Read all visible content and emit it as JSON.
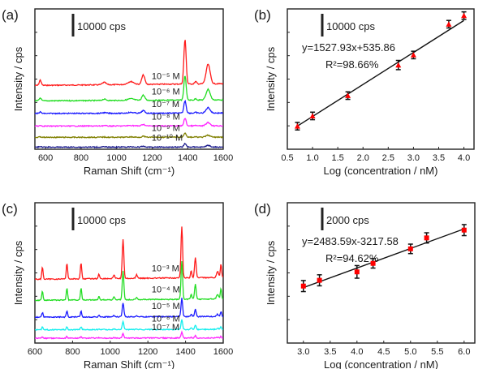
{
  "chart_data": [
    {
      "panel": "(a)",
      "type": "line",
      "xlabel": "Raman Shift (cm⁻¹)",
      "ylabel": "Intensity / cps",
      "xlim": [
        540,
        1600
      ],
      "xticks": [
        600,
        800,
        1000,
        1200,
        1400,
        1600
      ],
      "scale_bar": "10000 cps",
      "scale_bar_value": 10000,
      "series": [
        {
          "name": "10⁻⁵ M",
          "color": "#ff1a1a",
          "offset": 0.42,
          "amp": 1.0
        },
        {
          "name": "10⁻⁶ M",
          "color": "#22dd22",
          "offset": 0.31,
          "amp": 0.55
        },
        {
          "name": "10⁻⁷ M",
          "color": "#1a1aff",
          "offset": 0.22,
          "amp": 0.28
        },
        {
          "name": "10⁻⁸ M",
          "color": "#ff22ff",
          "offset": 0.13,
          "amp": 0.17
        },
        {
          "name": "10⁻⁹ M",
          "color": "#808000",
          "offset": 0.05,
          "amp": 0.1
        },
        {
          "name": "10⁻¹⁰ M",
          "color": "#1a1a8c",
          "offset": -0.02,
          "amp": 0.08
        }
      ],
      "peaks": [
        [
          570,
          0.09,
          8
        ],
        [
          930,
          0.04,
          15
        ],
        [
          1080,
          0.05,
          25
        ],
        [
          1150,
          0.16,
          12
        ],
        [
          1385,
          0.75,
          9
        ],
        [
          1445,
          0.04,
          8
        ],
        [
          1515,
          0.33,
          16
        ]
      ]
    },
    {
      "panel": "(b)",
      "type": "scatter",
      "xlabel": "Log (concentration / nM)",
      "ylabel": "Intensity / cps",
      "xlim": [
        0.5,
        4.2
      ],
      "xticks": [
        0.5,
        1.0,
        1.5,
        2.0,
        2.5,
        3.0,
        3.5,
        4.0
      ],
      "ylim": [
        500,
        7200
      ],
      "scale_bar": "10000 cps",
      "equation": "y=1527.93x+535.86",
      "r_squared": "R²=98.66%",
      "fit": {
        "slope": 1527.93,
        "intercept": 535.86
      },
      "x": [
        0.7,
        1.0,
        1.7,
        2.7,
        3.0,
        3.7,
        4.0
      ],
      "y": [
        1600,
        2090,
        3060,
        4520,
        5000,
        6470,
        6880
      ],
      "yerr": [
        180,
        180,
        180,
        220,
        180,
        180,
        180
      ],
      "marker": "triangle",
      "marker_color": "#ff0000"
    },
    {
      "panel": "(c)",
      "type": "line",
      "xlabel": "Raman Shift (cm⁻¹)",
      "ylabel": "Intensity / cps",
      "xlim": [
        600,
        1600
      ],
      "xticks": [
        600,
        800,
        1000,
        1200,
        1400,
        1600
      ],
      "scale_bar": "10000 cps",
      "scale_bar_value": 10000,
      "series": [
        {
          "name": "10⁻³ M",
          "color": "#ff1a1a",
          "offset": 0.42,
          "amp": 1.0
        },
        {
          "name": "10⁻⁴ M",
          "color": "#22dd22",
          "offset": 0.27,
          "amp": 0.74
        },
        {
          "name": "10⁻⁵ M",
          "color": "#1a1aff",
          "offset": 0.15,
          "amp": 0.36
        },
        {
          "name": "10⁻⁶ M",
          "color": "#11eeee",
          "offset": 0.06,
          "amp": 0.2
        },
        {
          "name": "10⁻⁷ M",
          "color": "#ff22ff",
          "offset": 0.0,
          "amp": 0.11
        }
      ],
      "peaks": [
        [
          640,
          0.21,
          5
        ],
        [
          770,
          0.27,
          5
        ],
        [
          845,
          0.27,
          5
        ],
        [
          940,
          0.08,
          5
        ],
        [
          1020,
          0.06,
          6
        ],
        [
          1068,
          0.66,
          6
        ],
        [
          1140,
          0.06,
          6
        ],
        [
          1380,
          0.87,
          6
        ],
        [
          1430,
          0.12,
          5
        ],
        [
          1452,
          0.34,
          6
        ],
        [
          1570,
          0.1,
          8
        ],
        [
          1588,
          0.23,
          5
        ]
      ]
    },
    {
      "panel": "(d)",
      "type": "scatter",
      "xlabel": "Log (concentration / nM)",
      "ylabel": "Intensity / cps",
      "xlim": [
        2.7,
        6.2
      ],
      "xticks": [
        3.0,
        3.5,
        4.0,
        4.5,
        5.0,
        5.5,
        6.0
      ],
      "ylim": [
        -2800,
        15000
      ],
      "scale_bar": "2000 cps",
      "equation": "y=2483.59x-3217.58",
      "r_squared": "R²=94.62%",
      "fit": {
        "slope": 2483.59,
        "intercept": -3217.58
      },
      "x": [
        3.0,
        3.3,
        4.0,
        4.3,
        5.0,
        5.3,
        6.0
      ],
      "y": [
        4430,
        5160,
        6230,
        7310,
        9150,
        10540,
        11530
      ],
      "yerr": [
        700,
        700,
        800,
        600,
        600,
        650,
        700
      ],
      "marker": "square",
      "marker_color": "#ff0000"
    }
  ]
}
